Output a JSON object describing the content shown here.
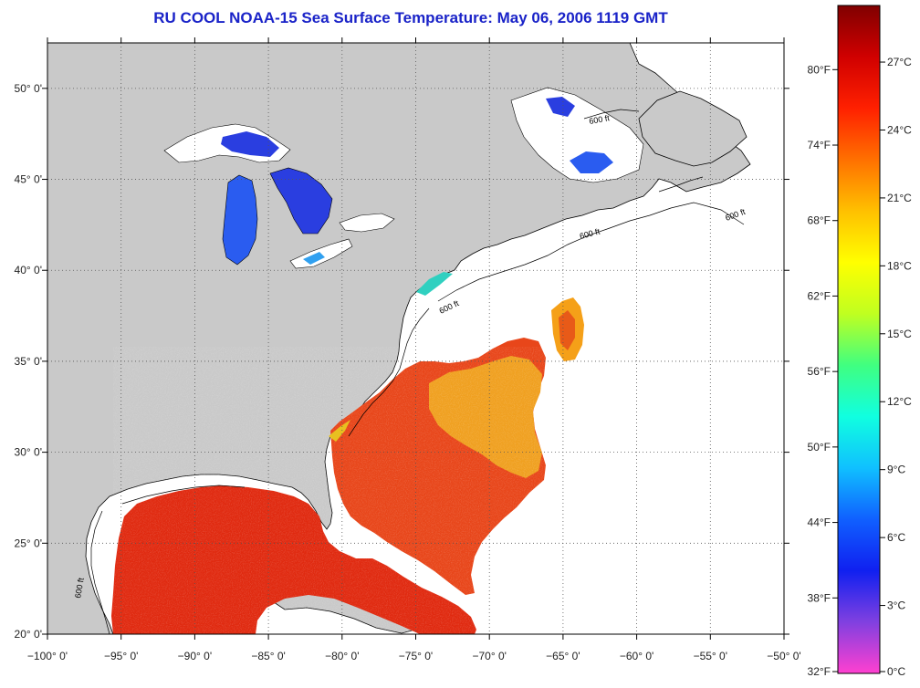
{
  "title": "RU COOL  NOAA-15  Sea Surface Temperature:  May 06, 2006 1119 GMT",
  "map": {
    "lon_range": [
      -100,
      -50
    ],
    "lat_range": [
      20,
      52.5
    ],
    "lon_ticks": [
      {
        "value": -100,
        "label": "−100° 0'"
      },
      {
        "value": -95,
        "label": "−95° 0'"
      },
      {
        "value": -90,
        "label": "−90° 0'"
      },
      {
        "value": -85,
        "label": "−85° 0'"
      },
      {
        "value": -80,
        "label": "−80° 0'"
      },
      {
        "value": -75,
        "label": "−75° 0'"
      },
      {
        "value": -70,
        "label": "−70° 0'"
      },
      {
        "value": -65,
        "label": "−65° 0'"
      },
      {
        "value": -60,
        "label": "−60° 0'"
      },
      {
        "value": -55,
        "label": "−55° 0'"
      },
      {
        "value": -50,
        "label": "−50° 0'"
      }
    ],
    "lat_ticks": [
      {
        "value": 20,
        "label": "20° 0'"
      },
      {
        "value": 25,
        "label": "25° 0'"
      },
      {
        "value": 30,
        "label": "30° 0'"
      },
      {
        "value": 35,
        "label": "35° 0'"
      },
      {
        "value": 40,
        "label": "40° 0'"
      },
      {
        "value": 45,
        "label": "45° 0'"
      },
      {
        "value": 50,
        "label": "50° 0'"
      }
    ],
    "grid": "dotted",
    "isobath_labels": [
      "600 ft",
      "600 ft",
      "600 ft",
      "600 ft",
      "600 ft"
    ],
    "colors": {
      "land": "#c9c9c9",
      "no_data": "#ffffff",
      "coast": "#000000",
      "warm": "#e02a10",
      "orange": "#f0a020",
      "lake": "#2a3ee0"
    }
  },
  "colorbar": {
    "fahrenheit": [
      {
        "value": 32,
        "label": "32°F"
      },
      {
        "value": 38,
        "label": "38°F"
      },
      {
        "value": 44,
        "label": "44°F"
      },
      {
        "value": 50,
        "label": "50°F"
      },
      {
        "value": 56,
        "label": "56°F"
      },
      {
        "value": 62,
        "label": "62°F"
      },
      {
        "value": 68,
        "label": "68°F"
      },
      {
        "value": 74,
        "label": "74°F"
      },
      {
        "value": 80,
        "label": "80°F"
      }
    ],
    "celsius": [
      {
        "value": 0,
        "label": "0°C"
      },
      {
        "value": 3,
        "label": "3°C"
      },
      {
        "value": 6,
        "label": "6°C"
      },
      {
        "value": 9,
        "label": "9°C"
      },
      {
        "value": 12,
        "label": "12°C"
      },
      {
        "value": 15,
        "label": "15°C"
      },
      {
        "value": 18,
        "label": "18°C"
      },
      {
        "value": 21,
        "label": "21°C"
      },
      {
        "value": 24,
        "label": "24°C"
      },
      {
        "value": 27,
        "label": "27°C"
      }
    ],
    "range_c": [
      0,
      29.5
    ],
    "gradient": [
      "#ff40d0",
      "#8040e0",
      "#1020f0",
      "#1060ff",
      "#10c0ff",
      "#10ffe0",
      "#40ff80",
      "#c0ff20",
      "#ffff00",
      "#ffc000",
      "#ff7000",
      "#ff2000",
      "#d00000",
      "#800000"
    ]
  }
}
